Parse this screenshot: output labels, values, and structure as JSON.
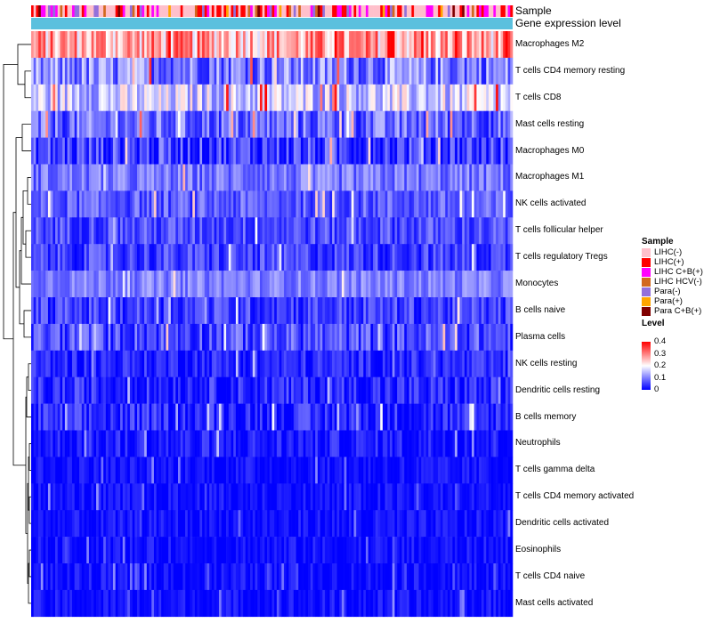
{
  "annotation_labels": {
    "sample": "Sample",
    "gene_expression": "Gene expression level"
  },
  "chart_data": {
    "type": "heatmap",
    "title": "",
    "rows": [
      {
        "label": "Macrophages M2",
        "mean": 0.27,
        "spread": 0.1
      },
      {
        "label": "T cells CD4 memory resting",
        "mean": 0.1,
        "spread": 0.08
      },
      {
        "label": "T cells CD8",
        "mean": 0.16,
        "spread": 0.08
      },
      {
        "label": "Mast cells resting",
        "mean": 0.08,
        "spread": 0.07
      },
      {
        "label": "Macrophages M0",
        "mean": 0.05,
        "spread": 0.07
      },
      {
        "label": "Macrophages M1",
        "mean": 0.09,
        "spread": 0.05
      },
      {
        "label": "NK cells activated",
        "mean": 0.07,
        "spread": 0.05
      },
      {
        "label": "T cells follicular helper",
        "mean": 0.06,
        "spread": 0.05
      },
      {
        "label": "T cells regulatory  Tregs",
        "mean": 0.05,
        "spread": 0.05
      },
      {
        "label": "Monocytes",
        "mean": 0.1,
        "spread": 0.04
      },
      {
        "label": "B cells naive",
        "mean": 0.05,
        "spread": 0.05
      },
      {
        "label": "Plasma cells",
        "mean": 0.06,
        "spread": 0.06
      },
      {
        "label": "NK cells resting",
        "mean": 0.03,
        "spread": 0.04
      },
      {
        "label": "Dendritic cells resting",
        "mean": 0.03,
        "spread": 0.05
      },
      {
        "label": "B cells memory",
        "mean": 0.03,
        "spread": 0.05
      },
      {
        "label": "Neutrophils",
        "mean": 0.02,
        "spread": 0.04
      },
      {
        "label": "T cells gamma delta",
        "mean": 0.01,
        "spread": 0.03
      },
      {
        "label": "T cells CD4 memory activated",
        "mean": 0.01,
        "spread": 0.03
      },
      {
        "label": "Dendritic cells activated",
        "mean": 0.01,
        "spread": 0.03
      },
      {
        "label": "Eosinophils",
        "mean": 0.01,
        "spread": 0.03
      },
      {
        "label": "T cells CD4 naive",
        "mean": 0.01,
        "spread": 0.03
      },
      {
        "label": "Mast cells activated",
        "mean": 0.01,
        "spread": 0.03
      }
    ],
    "num_samples": 200,
    "color_scale": {
      "min": 0,
      "max": 0.4,
      "low": "#0000ff",
      "mid": "#ffffff",
      "high": "#ff0000"
    },
    "sample_legend": {
      "title": "Sample",
      "items": [
        {
          "label": "LIHC(-)",
          "color": "#ffc0cb"
        },
        {
          "label": "LIHC(+)",
          "color": "#ff0000"
        },
        {
          "label": "LIHC C+B(+)",
          "color": "#ff00ff"
        },
        {
          "label": "LIHC HCV(-)",
          "color": "#d2691e"
        },
        {
          "label": "Para(-)",
          "color": "#9370db"
        },
        {
          "label": "Para(+)",
          "color": "#ffa500"
        },
        {
          "label": "Para C+B(+)",
          "color": "#800000"
        }
      ]
    },
    "level_legend": {
      "title": "Level",
      "ticks": [
        {
          "label": "0.4",
          "value": 0.4
        },
        {
          "label": "0.3",
          "value": 0.3
        },
        {
          "label": "0.2",
          "value": 0.2
        },
        {
          "label": "0.1",
          "value": 0.1
        },
        {
          "label": "0",
          "value": 0
        }
      ]
    },
    "gene_expression_color": "#5bc0de"
  }
}
